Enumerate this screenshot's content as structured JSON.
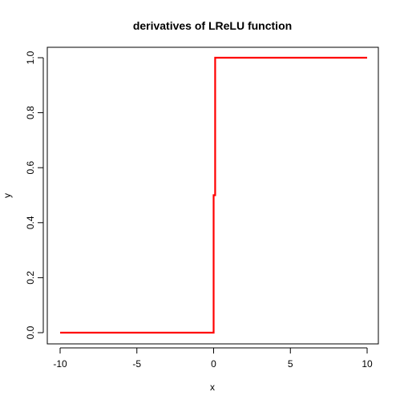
{
  "chart_data": {
    "type": "line",
    "title": "derivatives of LReLU function",
    "xlabel": "x",
    "ylabel": "y",
    "xlim": [
      -10,
      10
    ],
    "ylim": [
      0,
      1
    ],
    "x_ticks": [
      -10,
      -5,
      0,
      5,
      10
    ],
    "y_ticks": [
      0.0,
      0.2,
      0.4,
      0.6,
      0.8,
      1.0
    ],
    "x_tick_labels": [
      "-10",
      "-5",
      "0",
      "5",
      "10"
    ],
    "y_tick_labels": [
      "0.0",
      "0.2",
      "0.4",
      "0.6",
      "0.8",
      "1.0"
    ],
    "grid": false,
    "series": [
      {
        "color": "#ff0000",
        "points": [
          [
            -10,
            0.0
          ],
          [
            0,
            0.0
          ],
          [
            0,
            0.5
          ],
          [
            0.1,
            0.5
          ],
          [
            0.1,
            1.0
          ],
          [
            10,
            1.0
          ]
        ]
      }
    ]
  }
}
